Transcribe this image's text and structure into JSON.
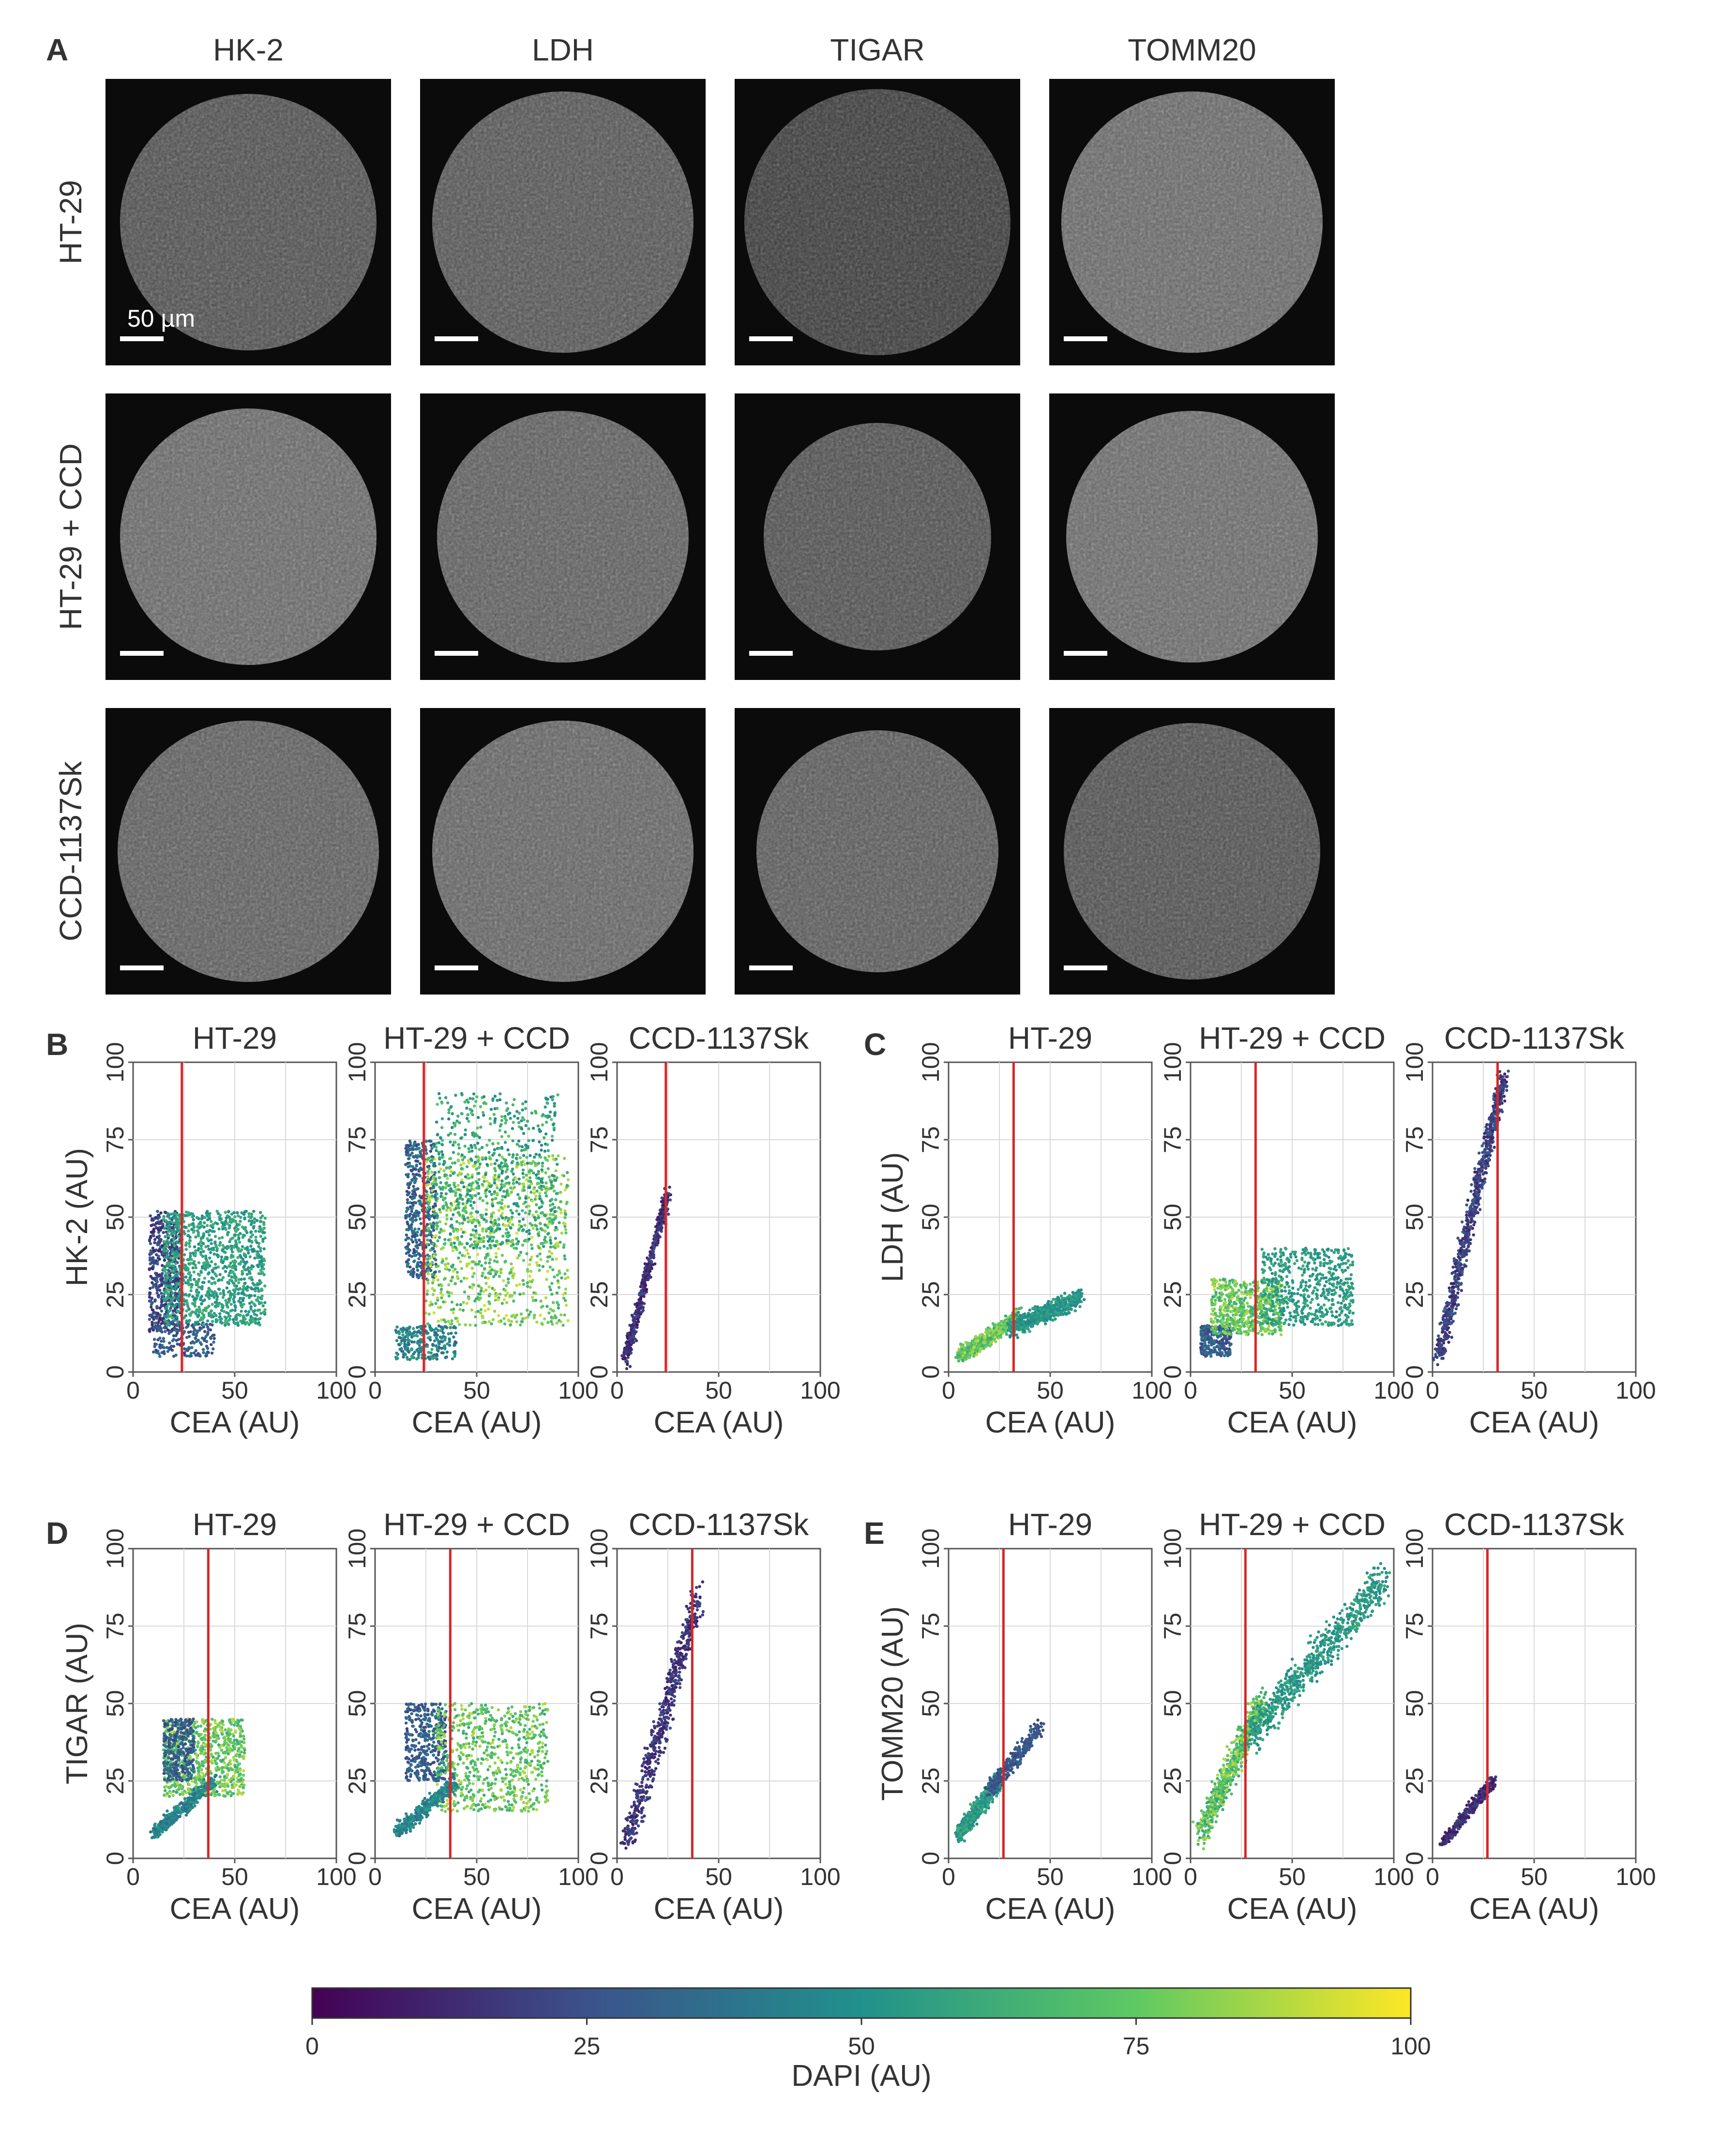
{
  "panels": {
    "A": "A",
    "B": "B",
    "C": "C",
    "D": "D",
    "E": "E"
  },
  "micrographs": {
    "columns": [
      "HK-2",
      "LDH",
      "TIGAR",
      "TOMM20"
    ],
    "rows": [
      "HT-29",
      "HT-29 + CCD",
      "CCD-1137Sk"
    ],
    "scale_bar_label": "50 µm"
  },
  "plot_titles": [
    "HT-29",
    "HT-29 + CCD",
    "CCD-1137Sk"
  ],
  "colorbar": {
    "label": "DAPI (AU)",
    "ticks": [
      "0",
      "25",
      "50",
      "75",
      "100"
    ],
    "colormap": [
      "#440154",
      "#3b528b",
      "#21918c",
      "#5ec962",
      "#fde725"
    ]
  },
  "threshold_color": "#d62728",
  "chart_data": [
    {
      "panel": "B",
      "type": "scatter",
      "title": "HT-29",
      "xlabel": "CEA (AU)",
      "ylabel": "HK-2 (AU)",
      "xlim": [
        0,
        100
      ],
      "ylim": [
        0,
        100
      ],
      "xticks": [
        "0",
        "50",
        "100"
      ],
      "yticks": [
        "0",
        "25",
        "50",
        "75",
        "100"
      ],
      "threshold_x": 24,
      "grid": true,
      "clusters": [
        {
          "x": [
            8,
            24
          ],
          "y": [
            13,
            52
          ],
          "dapi": [
            10,
            32
          ],
          "n": 520
        },
        {
          "x": [
            10,
            40
          ],
          "y": [
            5,
            16
          ],
          "dapi": [
            20,
            40
          ],
          "n": 180
        },
        {
          "x": [
            15,
            65
          ],
          "y": [
            15,
            52
          ],
          "dapi": [
            48,
            65
          ],
          "n": 1100
        }
      ]
    },
    {
      "panel": "B",
      "type": "scatter",
      "title": "HT-29 + CCD",
      "xlabel": "CEA (AU)",
      "ylabel": "",
      "xlim": [
        0,
        100
      ],
      "ylim": [
        0,
        100
      ],
      "xticks": [
        "0",
        "50",
        "100"
      ],
      "yticks": [
        "0",
        "25",
        "50",
        "75",
        "100"
      ],
      "threshold_x": 24,
      "grid": true,
      "clusters": [
        {
          "x": [
            15,
            30
          ],
          "y": [
            30,
            75
          ],
          "dapi": [
            20,
            45
          ],
          "n": 450
        },
        {
          "x": [
            10,
            40
          ],
          "y": [
            4,
            15
          ],
          "dapi": [
            30,
            60
          ],
          "n": 250
        },
        {
          "x": [
            25,
            95
          ],
          "y": [
            15,
            70
          ],
          "dapi": [
            60,
            95
          ],
          "n": 900
        },
        {
          "x": [
            30,
            90
          ],
          "y": [
            40,
            90
          ],
          "dapi": [
            45,
            75
          ],
          "n": 600
        }
      ]
    },
    {
      "panel": "B",
      "type": "scatter",
      "title": "CCD-1137Sk",
      "xlabel": "CEA (AU)",
      "ylabel": "",
      "xlim": [
        0,
        100
      ],
      "ylim": [
        0,
        100
      ],
      "xticks": [
        "0",
        "50",
        "100"
      ],
      "yticks": [
        "0",
        "25",
        "50",
        "75",
        "100"
      ],
      "threshold_x": 24,
      "grid": true,
      "line_clusters": [
        {
          "x": [
            4,
            25
          ],
          "y": [
            4,
            58
          ],
          "spread": 2.5,
          "dapi": [
            5,
            25
          ],
          "n": 500
        }
      ]
    },
    {
      "panel": "C",
      "type": "scatter",
      "title": "HT-29",
      "xlabel": "CEA (AU)",
      "ylabel": "LDH (AU)",
      "xlim": [
        0,
        100
      ],
      "ylim": [
        0,
        100
      ],
      "xticks": [
        "0",
        "50",
        "100"
      ],
      "yticks": [
        "0",
        "25",
        "50",
        "75",
        "100"
      ],
      "threshold_x": 32,
      "grid": true,
      "line_clusters": [
        {
          "x": [
            5,
            35
          ],
          "y": [
            5,
            18
          ],
          "spread": 2.5,
          "dapi": [
            60,
            90
          ],
          "n": 700
        },
        {
          "x": [
            30,
            65
          ],
          "y": [
            14,
            24
          ],
          "spread": 3,
          "dapi": [
            45,
            60
          ],
          "n": 600
        }
      ]
    },
    {
      "panel": "C",
      "type": "scatter",
      "title": "HT-29 + CCD",
      "xlabel": "CEA (AU)",
      "ylabel": "",
      "xlim": [
        0,
        100
      ],
      "ylim": [
        0,
        100
      ],
      "xticks": [
        "0",
        "50",
        "100"
      ],
      "yticks": [
        "0",
        "25",
        "50",
        "75",
        "100"
      ],
      "threshold_x": 32,
      "grid": true,
      "clusters": [
        {
          "x": [
            5,
            20
          ],
          "y": [
            5,
            15
          ],
          "dapi": [
            20,
            40
          ],
          "n": 250
        },
        {
          "x": [
            10,
            45
          ],
          "y": [
            12,
            30
          ],
          "dapi": [
            60,
            90
          ],
          "n": 600
        },
        {
          "x": [
            35,
            80
          ],
          "y": [
            15,
            40
          ],
          "dapi": [
            48,
            62
          ],
          "n": 600
        }
      ]
    },
    {
      "panel": "C",
      "type": "scatter",
      "title": "CCD-1137Sk",
      "xlabel": "CEA (AU)",
      "ylabel": "",
      "xlim": [
        0,
        100
      ],
      "ylim": [
        0,
        100
      ],
      "xticks": [
        "0",
        "50",
        "100"
      ],
      "yticks": [
        "0",
        "25",
        "50",
        "75",
        "100"
      ],
      "threshold_x": 32,
      "grid": true,
      "line_clusters": [
        {
          "x": [
            3,
            35
          ],
          "y": [
            5,
            95
          ],
          "spread": 4,
          "dapi": [
            10,
            30
          ],
          "n": 800
        }
      ]
    },
    {
      "panel": "D",
      "type": "scatter",
      "title": "HT-29",
      "xlabel": "CEA (AU)",
      "ylabel": "TIGAR (AU)",
      "xlim": [
        0,
        100
      ],
      "ylim": [
        0,
        100
      ],
      "xticks": [
        "0",
        "50",
        "100"
      ],
      "yticks": [
        "0",
        "25",
        "50",
        "75",
        "100"
      ],
      "threshold_x": 37,
      "grid": true,
      "clusters": [
        {
          "x": [
            15,
            55
          ],
          "y": [
            20,
            45
          ],
          "dapi": [
            60,
            90
          ],
          "n": 800
        },
        {
          "x": [
            15,
            30
          ],
          "y": [
            25,
            45
          ],
          "dapi": [
            20,
            40
          ],
          "n": 300
        }
      ],
      "line_clusters": [
        {
          "x": [
            10,
            40
          ],
          "y": [
            8,
            25
          ],
          "spread": 2.5,
          "dapi": [
            35,
            55
          ],
          "n": 400
        }
      ]
    },
    {
      "panel": "D",
      "type": "scatter",
      "title": "HT-29 + CCD",
      "xlabel": "CEA (AU)",
      "ylabel": "",
      "xlim": [
        0,
        100
      ],
      "ylim": [
        0,
        100
      ],
      "xticks": [
        "0",
        "50",
        "100"
      ],
      "yticks": [
        "0",
        "25",
        "50",
        "75",
        "100"
      ],
      "threshold_x": 37,
      "grid": true,
      "clusters": [
        {
          "x": [
            15,
            35
          ],
          "y": [
            25,
            50
          ],
          "dapi": [
            20,
            40
          ],
          "n": 400
        },
        {
          "x": [
            30,
            85
          ],
          "y": [
            15,
            50
          ],
          "dapi": [
            60,
            90
          ],
          "n": 700
        }
      ],
      "line_clusters": [
        {
          "x": [
            10,
            40
          ],
          "y": [
            8,
            25
          ],
          "spread": 2.5,
          "dapi": [
            35,
            55
          ],
          "n": 400
        }
      ]
    },
    {
      "panel": "D",
      "type": "scatter",
      "title": "CCD-1137Sk",
      "xlabel": "CEA (AU)",
      "ylabel": "",
      "xlim": [
        0,
        100
      ],
      "ylim": [
        0,
        100
      ],
      "xticks": [
        "0",
        "50",
        "100"
      ],
      "yticks": [
        "0",
        "25",
        "50",
        "75",
        "100"
      ],
      "threshold_x": 37,
      "grid": true,
      "line_clusters": [
        {
          "x": [
            5,
            40
          ],
          "y": [
            5,
            85
          ],
          "spread": 5,
          "dapi": [
            8,
            25
          ],
          "n": 600
        }
      ]
    },
    {
      "panel": "E",
      "type": "scatter",
      "title": "HT-29",
      "xlabel": "CEA (AU)",
      "ylabel": "TOMM20 (AU)",
      "xlim": [
        0,
        100
      ],
      "ylim": [
        0,
        100
      ],
      "xticks": [
        "0",
        "50",
        "100"
      ],
      "yticks": [
        "0",
        "25",
        "50",
        "75",
        "100"
      ],
      "threshold_x": 27,
      "grid": true,
      "line_clusters": [
        {
          "x": [
            5,
            25
          ],
          "y": [
            8,
            25
          ],
          "spread": 3,
          "dapi": [
            45,
            65
          ],
          "n": 600
        },
        {
          "x": [
            20,
            45
          ],
          "y": [
            22,
            42
          ],
          "spread": 3,
          "dapi": [
            20,
            35
          ],
          "n": 350
        }
      ]
    },
    {
      "panel": "E",
      "type": "scatter",
      "title": "HT-29 + CCD",
      "xlabel": "CEA (AU)",
      "ylabel": "",
      "xlim": [
        0,
        100
      ],
      "ylim": [
        0,
        100
      ],
      "xticks": [
        "0",
        "50",
        "100"
      ],
      "yticks": [
        "0",
        "25",
        "50",
        "75",
        "100"
      ],
      "threshold_x": 27,
      "grid": true,
      "line_clusters": [
        {
          "x": [
            5,
            35
          ],
          "y": [
            8,
            50
          ],
          "spread": 5,
          "dapi": [
            55,
            90
          ],
          "n": 700
        },
        {
          "x": [
            30,
            95
          ],
          "y": [
            40,
            90
          ],
          "spread": 6,
          "dapi": [
            45,
            62
          ],
          "n": 700
        }
      ]
    },
    {
      "panel": "E",
      "type": "scatter",
      "title": "CCD-1137Sk",
      "xlabel": "CEA (AU)",
      "ylabel": "",
      "xlim": [
        0,
        100
      ],
      "ylim": [
        0,
        100
      ],
      "xticks": [
        "0",
        "50",
        "100"
      ],
      "yticks": [
        "0",
        "25",
        "50",
        "75",
        "100"
      ],
      "threshold_x": 27,
      "grid": true,
      "line_clusters": [
        {
          "x": [
            5,
            30
          ],
          "y": [
            5,
            25
          ],
          "spread": 2,
          "dapi": [
            5,
            22
          ],
          "n": 400
        }
      ]
    }
  ]
}
